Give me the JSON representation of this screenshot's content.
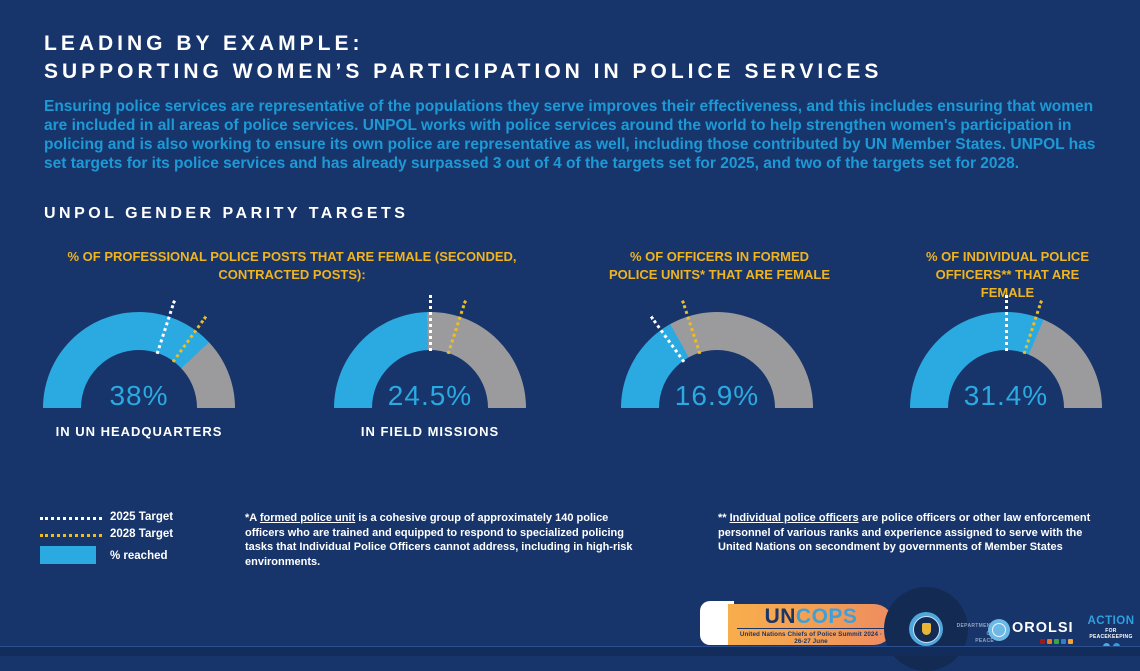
{
  "header": {
    "title_line1": "LEADING BY EXAMPLE:",
    "title_line2": "SUPPORTING WOMEN’S PARTICIPATION IN POLICE SERVICES",
    "intro": "Ensuring police services are representative of the populations they serve improves their effectiveness, and this includes ensuring that women are included in all areas of police services. UNPOL works with police services around the world to help strengthen women's participation in policing and is also working to ensure its own police are representative as well, including those contributed by UN Member States. UNPOL has set targets for its police services and has already surpassed 3 out of 4 of the targets set for 2025, and two of the targets set for 2028.",
    "section_heading": "UNPOL GENDER PARITY TARGETS"
  },
  "chart_data": {
    "type": "gauge",
    "variant": "semicircle-donut",
    "unit": "%",
    "gauge_axis": {
      "min": 0,
      "max": 50
    },
    "colors": {
      "reached": "#2BA9E1",
      "remainder": "#9B9B9D",
      "target_2025_line": "#FFFFFF",
      "target_2028_line": "#F0BD1F",
      "background": "#17356B",
      "header_text": "#F0B41F"
    },
    "group_headers": [
      {
        "text": "% OF PROFESSIONAL POLICE POSTS THAT ARE FEMALE (SECONDED,\nCONTRACTED POSTS):",
        "applies_to": [
          "IN UN HEADQUARTERS",
          "IN FIELD MISSIONS"
        ]
      },
      {
        "text": "% OF OFFICERS IN FORMED\nPOLICE UNITS* THAT ARE FEMALE",
        "applies_to": [
          "FORMED POLICE UNITS"
        ]
      },
      {
        "text": "% OF INDIVIDUAL POLICE\nOFFICERS** THAT ARE\nFEMALE",
        "applies_to": [
          "INDIVIDUAL POLICE OFFICERS"
        ]
      }
    ],
    "gauges": [
      {
        "label": "IN UN HEADQUARTERS",
        "reached": 38,
        "display": "38%",
        "target_2025": 30,
        "target_2028": 35
      },
      {
        "label": "IN FIELD MISSIONS",
        "reached": 24.5,
        "display": "24.5%",
        "target_2025": 25,
        "target_2028": 30
      },
      {
        "label": "",
        "reached": 16.9,
        "display": "16.9%",
        "target_2025": 15,
        "target_2028": 20
      },
      {
        "label": "",
        "reached": 31.4,
        "display": "31.4%",
        "target_2025": 25,
        "target_2028": 30
      }
    ],
    "note": "Target values estimated from dotted-line angles; gauge arc spans 0–50%."
  },
  "legend": {
    "t2025": "2025 Target",
    "t2028": "2028 Target",
    "reached": "% reached"
  },
  "footnotes": {
    "fpu": {
      "prefix": "*A ",
      "term": "formed police unit",
      "rest": " is a cohesive group of approximately 140 police officers who are trained and equipped to respond to specialized policing tasks that Individual Police Officers cannot address, including in high-risk environments."
    },
    "ipo": {
      "prefix": "** ",
      "term": "Individual police officers",
      "rest": " are police officers or other law enforcement personnel of various ranks and experience assigned to serve with the United Nations on secondment by governments of Member States"
    }
  },
  "footer": {
    "uncops": {
      "un": "UN",
      "cops": "COPS",
      "subtitle": "United Nations Chiefs of Police Summit 2024 · 26-27 June"
    },
    "dpo": {
      "line1": "DEPARTMENT OF",
      "line2": "PEACE OPERATIONS"
    },
    "orolsi": "OROLSI",
    "orolsi_dot_colors": [
      "#9E1B1B",
      "#E87722",
      "#3FA34D",
      "#2E7FD1",
      "#F2A33C"
    ],
    "a4p": {
      "line1": "ACTION",
      "line2": "FOR PEACEKEEPING"
    }
  }
}
